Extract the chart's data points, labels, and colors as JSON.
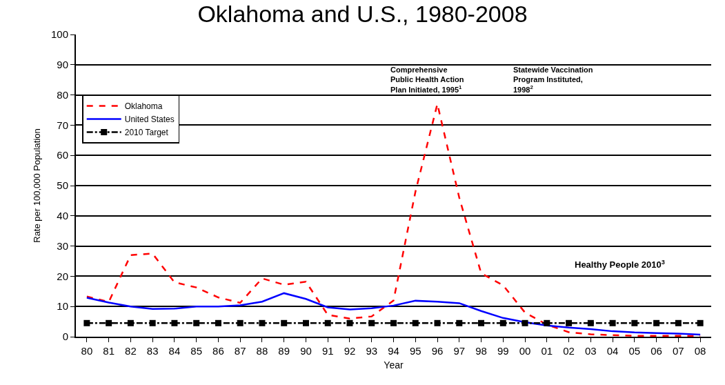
{
  "chart_data": {
    "type": "line",
    "title": "Oklahoma and U.S., 1980-2008",
    "xlabel": "Year",
    "ylabel": "Rate per 100,000 Population",
    "categories": [
      "80",
      "81",
      "82",
      "83",
      "84",
      "85",
      "86",
      "87",
      "88",
      "89",
      "90",
      "91",
      "92",
      "93",
      "94",
      "95",
      "96",
      "97",
      "98",
      "99",
      "00",
      "01",
      "02",
      "03",
      "04",
      "05",
      "06",
      "07",
      "08"
    ],
    "series": [
      {
        "name": "Oklahoma",
        "color": "#ff0000",
        "line_style": "dashed",
        "marker": "none",
        "values": [
          13.3,
          11.5,
          27,
          27.5,
          18,
          16.3,
          13,
          11.2,
          19.3,
          17.2,
          18.2,
          7.2,
          6,
          6.7,
          12,
          48,
          77,
          46,
          21,
          17,
          8,
          4,
          1.5,
          0.8,
          0.5,
          0.3,
          0.3,
          0.3,
          0.2
        ]
      },
      {
        "name": "United States",
        "color": "#0000ff",
        "line_style": "solid",
        "marker": "none",
        "values": [
          12.9,
          11.3,
          10,
          9.2,
          9.3,
          10,
          10,
          10.4,
          11.6,
          14.4,
          12.5,
          9.7,
          9,
          9.4,
          10.3,
          11.9,
          11.6,
          11.1,
          8.5,
          6.2,
          4.8,
          3.7,
          3,
          2.5,
          1.8,
          1.4,
          1.2,
          1,
          0.7
        ]
      },
      {
        "name": "2010 Target",
        "color": "#000000",
        "line_style": "dashdot",
        "marker": "square",
        "values": [
          4.5,
          4.5,
          4.5,
          4.5,
          4.5,
          4.5,
          4.5,
          4.5,
          4.5,
          4.5,
          4.5,
          4.5,
          4.5,
          4.5,
          4.5,
          4.5,
          4.5,
          4.5,
          4.5,
          4.5,
          4.5,
          4.5,
          4.5,
          4.5,
          4.5,
          4.5,
          4.5,
          4.5,
          4.5
        ]
      }
    ],
    "annotations": [
      "Comprehensive\nPublic Health Action\nPlan Initiated, 1995$^{1}$",
      "Statewide Vaccination\nProgram Instituted,\n1998$^{2}$",
      "Healthy People 2010$^{3}$"
    ],
    "ylim": [
      0,
      100
    ],
    "yticks": [
      0,
      10,
      20,
      30,
      40,
      50,
      60,
      70,
      80,
      90,
      100
    ],
    "grid": "y",
    "legend": "top left"
  }
}
